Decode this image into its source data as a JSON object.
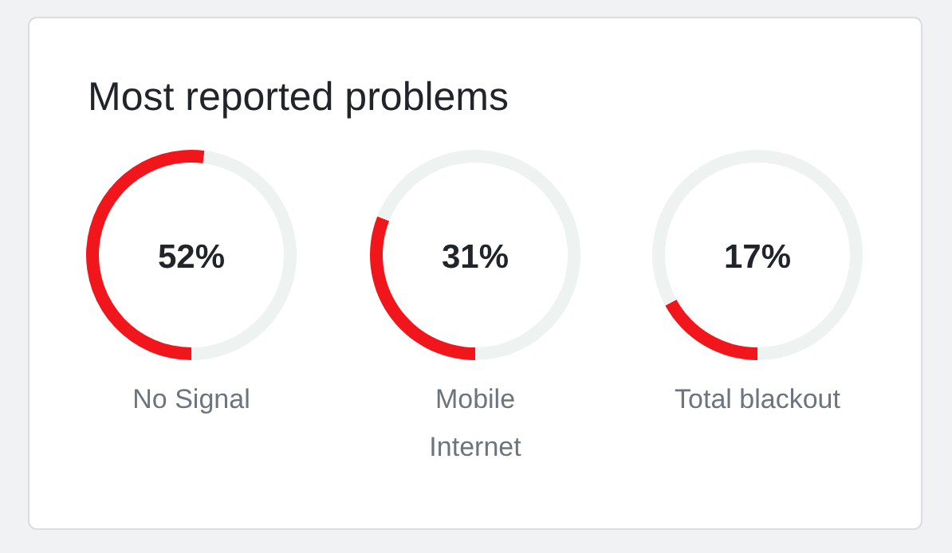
{
  "chart_data": [
    {
      "type": "donut",
      "title": "Most reported problems",
      "categories": [
        "No Signal",
        null
      ],
      "values": [
        52,
        48
      ],
      "colors": [
        "#f0161b",
        "#eef2f1"
      ],
      "value_labels": [
        "52%",
        null
      ]
    },
    {
      "type": "donut",
      "categories": [
        "Mobile Internet",
        null
      ],
      "values": [
        31,
        69
      ],
      "colors": [
        "#f0161b",
        "#eef2f1"
      ],
      "value_labels": [
        "31%",
        null
      ]
    },
    {
      "type": "donut",
      "categories": [
        "Total blackout",
        null
      ],
      "values": [
        17,
        83
      ],
      "colors": [
        "#f0161b",
        "#eef2f1"
      ],
      "value_labels": [
        "17%",
        null
      ]
    }
  ]
}
